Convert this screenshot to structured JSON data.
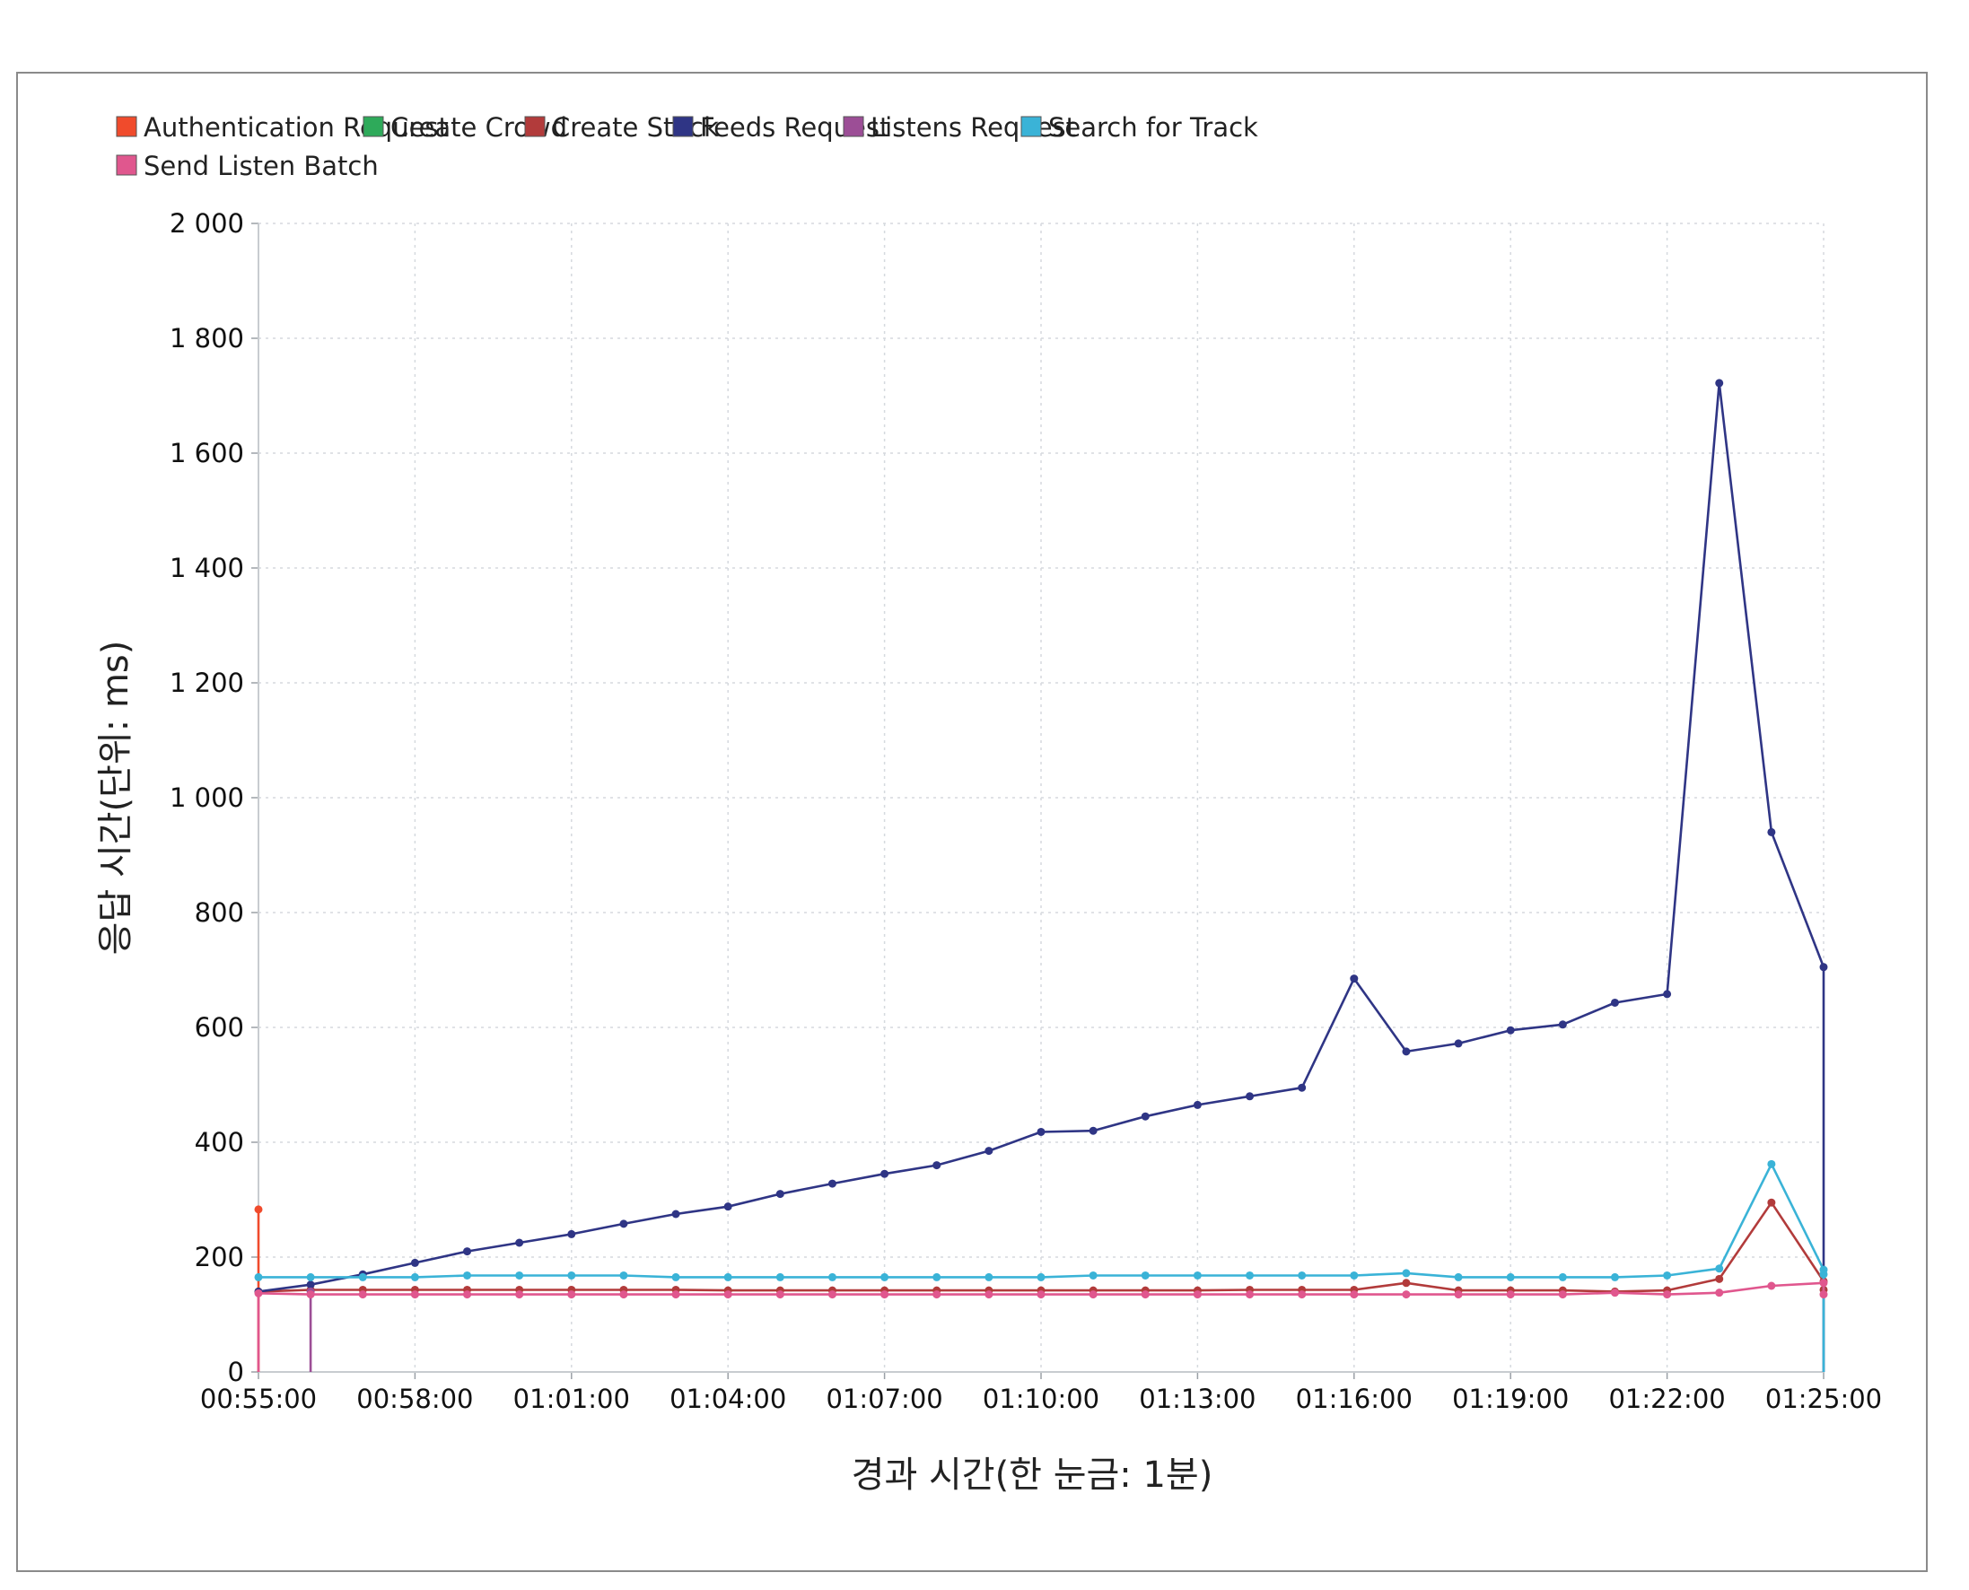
{
  "chart_data": {
    "type": "line",
    "title": "",
    "xlabel": "경과 시간(한 눈금: 1분)",
    "ylabel": "응답 시간(단위: ms)",
    "ylim": [
      0,
      2000
    ],
    "yticks": [
      0,
      200,
      400,
      600,
      800,
      1000,
      1200,
      1400,
      1600,
      1800,
      2000
    ],
    "ytick_labels": [
      "0",
      "200",
      "400",
      "600",
      "800",
      "1 000",
      "1 200",
      "1 400",
      "1 600",
      "1 800",
      "2 000"
    ],
    "xlim_minutes": [
      0,
      30
    ],
    "xticks_minutes": [
      0,
      3,
      6,
      9,
      12,
      15,
      18,
      21,
      24,
      27,
      30
    ],
    "xtick_labels": [
      "00:55:00",
      "00:58:00",
      "01:01:00",
      "01:04:00",
      "01:07:00",
      "01:10:00",
      "01:13:00",
      "01:16:00",
      "01:19:00",
      "01:22:00",
      "01:25:00"
    ],
    "grid": true,
    "legend_position": "top-left",
    "x_minutes": [
      0,
      1,
      2,
      3,
      4,
      5,
      6,
      7,
      8,
      9,
      10,
      11,
      12,
      13,
      14,
      15,
      16,
      17,
      18,
      19,
      20,
      21,
      22,
      23,
      24,
      25,
      26,
      27,
      28,
      29,
      30
    ],
    "series": [
      {
        "name": "Authentication Request",
        "color": "#f04b2c",
        "points": [
          [
            0,
            283
          ],
          [
            0,
            0
          ]
        ]
      },
      {
        "name": "Create Crowd",
        "color": "#2eaa5a",
        "points": []
      },
      {
        "name": "Create Stack",
        "color": "#b23b3b",
        "points": [
          [
            0,
            140
          ],
          [
            1,
            143
          ],
          [
            2,
            143
          ],
          [
            3,
            143
          ],
          [
            4,
            143
          ],
          [
            5,
            143
          ],
          [
            6,
            143
          ],
          [
            7,
            143
          ],
          [
            8,
            143
          ],
          [
            9,
            142
          ],
          [
            10,
            142
          ],
          [
            11,
            142
          ],
          [
            12,
            142
          ],
          [
            13,
            142
          ],
          [
            14,
            142
          ],
          [
            15,
            142
          ],
          [
            16,
            142
          ],
          [
            17,
            142
          ],
          [
            18,
            142
          ],
          [
            19,
            143
          ],
          [
            20,
            143
          ],
          [
            21,
            143
          ],
          [
            22,
            155
          ],
          [
            23,
            142
          ],
          [
            24,
            142
          ],
          [
            25,
            142
          ],
          [
            26,
            140
          ],
          [
            27,
            142
          ],
          [
            28,
            162
          ],
          [
            29,
            295
          ],
          [
            30,
            158
          ],
          [
            30,
            143
          ]
        ]
      },
      {
        "name": "Feeds Request",
        "color": "#2f3585",
        "points": [
          [
            0,
            140
          ],
          [
            1,
            152
          ],
          [
            2,
            170
          ],
          [
            3,
            190
          ],
          [
            4,
            210
          ],
          [
            5,
            225
          ],
          [
            6,
            240
          ],
          [
            7,
            258
          ],
          [
            8,
            275
          ],
          [
            9,
            288
          ],
          [
            10,
            310
          ],
          [
            11,
            328
          ],
          [
            12,
            345
          ],
          [
            13,
            360
          ],
          [
            14,
            385
          ],
          [
            15,
            418
          ],
          [
            16,
            420
          ],
          [
            17,
            445
          ],
          [
            18,
            465
          ],
          [
            19,
            480
          ],
          [
            20,
            495
          ],
          [
            21,
            685
          ],
          [
            22,
            558
          ],
          [
            23,
            572
          ],
          [
            24,
            595
          ],
          [
            25,
            605
          ],
          [
            26,
            643
          ],
          [
            27,
            658
          ],
          [
            28,
            1722
          ],
          [
            29,
            940
          ],
          [
            30,
            705
          ],
          [
            30,
            0
          ]
        ]
      },
      {
        "name": "Listens Request",
        "color": "#9c4e96",
        "points": [
          [
            1,
            140
          ],
          [
            1,
            0
          ]
        ]
      },
      {
        "name": "Search for Track",
        "color": "#3ab3d7",
        "points": [
          [
            0,
            165
          ],
          [
            1,
            165
          ],
          [
            2,
            165
          ],
          [
            3,
            165
          ],
          [
            4,
            168
          ],
          [
            5,
            168
          ],
          [
            6,
            168
          ],
          [
            7,
            168
          ],
          [
            8,
            165
          ],
          [
            9,
            165
          ],
          [
            10,
            165
          ],
          [
            11,
            165
          ],
          [
            12,
            165
          ],
          [
            13,
            165
          ],
          [
            14,
            165
          ],
          [
            15,
            165
          ],
          [
            16,
            168
          ],
          [
            17,
            168
          ],
          [
            18,
            168
          ],
          [
            19,
            168
          ],
          [
            20,
            168
          ],
          [
            21,
            168
          ],
          [
            22,
            172
          ],
          [
            23,
            165
          ],
          [
            24,
            165
          ],
          [
            25,
            165
          ],
          [
            26,
            165
          ],
          [
            27,
            168
          ],
          [
            28,
            180
          ],
          [
            29,
            362
          ],
          [
            30,
            178
          ],
          [
            30,
            170
          ],
          [
            30,
            0
          ]
        ]
      },
      {
        "name": "Send Listen Batch",
        "color": "#e0578e",
        "points": [
          [
            0,
            0
          ],
          [
            0,
            137
          ],
          [
            1,
            135
          ],
          [
            2,
            135
          ],
          [
            3,
            135
          ],
          [
            4,
            135
          ],
          [
            5,
            135
          ],
          [
            6,
            135
          ],
          [
            7,
            135
          ],
          [
            8,
            135
          ],
          [
            9,
            135
          ],
          [
            10,
            135
          ],
          [
            11,
            135
          ],
          [
            12,
            135
          ],
          [
            13,
            135
          ],
          [
            14,
            135
          ],
          [
            15,
            135
          ],
          [
            16,
            135
          ],
          [
            17,
            135
          ],
          [
            18,
            135
          ],
          [
            19,
            135
          ],
          [
            20,
            135
          ],
          [
            21,
            135
          ],
          [
            22,
            135
          ],
          [
            23,
            135
          ],
          [
            24,
            135
          ],
          [
            25,
            135
          ],
          [
            26,
            138
          ],
          [
            27,
            135
          ],
          [
            28,
            138
          ],
          [
            29,
            150
          ],
          [
            30,
            155
          ],
          [
            30,
            135
          ]
        ]
      }
    ]
  }
}
